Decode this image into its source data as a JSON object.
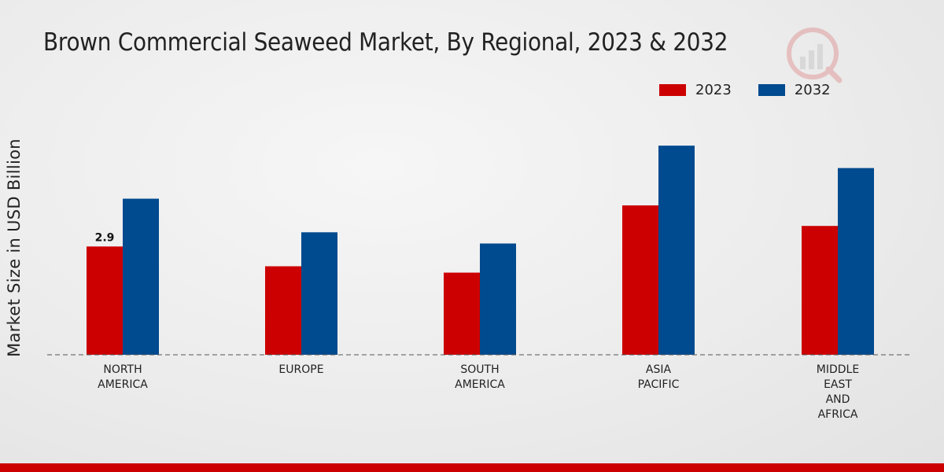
{
  "chart_data": {
    "type": "bar",
    "title": "Brown Commercial Seaweed Market, By Regional, 2023 & 2032",
    "ylabel": "Market Size in USD Billion",
    "xlabel": "",
    "categories": [
      [
        "NORTH",
        "AMERICA"
      ],
      [
        "EUROPE"
      ],
      [
        "SOUTH",
        "AMERICA"
      ],
      [
        "ASIA",
        "PACIFIC"
      ],
      [
        "MIDDLE",
        "EAST",
        "AND",
        "AFRICA"
      ]
    ],
    "series": [
      {
        "name": "2023",
        "color": "#cc0000",
        "values": [
          2.9,
          2.37,
          2.2,
          4.0,
          3.45
        ]
      },
      {
        "name": "2032",
        "color": "#004a8f",
        "values": [
          4.18,
          3.28,
          2.98,
          5.6,
          5.0
        ]
      }
    ],
    "data_labels": [
      {
        "series": 0,
        "index": 0,
        "text": "2.9"
      }
    ],
    "ylim": [
      0,
      9.5
    ],
    "legend_position": "top-right",
    "grid": false
  }
}
